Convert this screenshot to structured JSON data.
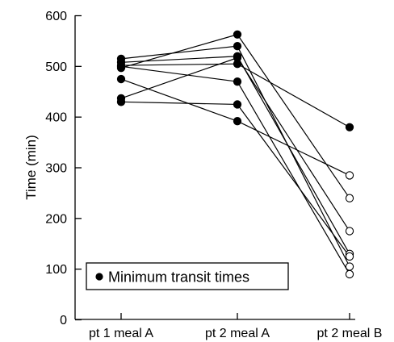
{
  "chart_data": {
    "type": "line",
    "xlabel": "",
    "ylabel": "Time (min)",
    "categories": [
      "pt 1 meal A",
      "pt 2 meal A",
      "pt 2 meal B"
    ],
    "ylim": [
      0,
      600
    ],
    "yticks": [
      0,
      100,
      200,
      300,
      400,
      500,
      600
    ],
    "grid": false,
    "legend": {
      "label": "Minimum transit times",
      "position": "bottom-left"
    },
    "series": [
      {
        "values": [
          515,
          540,
          105
        ]
      },
      {
        "values": [
          508,
          520,
          130
        ]
      },
      {
        "values": [
          502,
          505,
          380
        ]
      },
      {
        "values": [
          497,
          563,
          240
        ]
      },
      {
        "values": [
          475,
          392,
          285
        ]
      },
      {
        "values": [
          437,
          517,
          175
        ]
      },
      {
        "values": [
          430,
          425,
          125
        ]
      },
      {
        "values": [
          500,
          470,
          90
        ]
      }
    ],
    "marker_fill": [
      "filled",
      "filled",
      "filled",
      "filled",
      "filled",
      "filled",
      "filled",
      "open"
    ],
    "note_third_column": "In the third column one point (380) is filled, the rest are open circles"
  }
}
